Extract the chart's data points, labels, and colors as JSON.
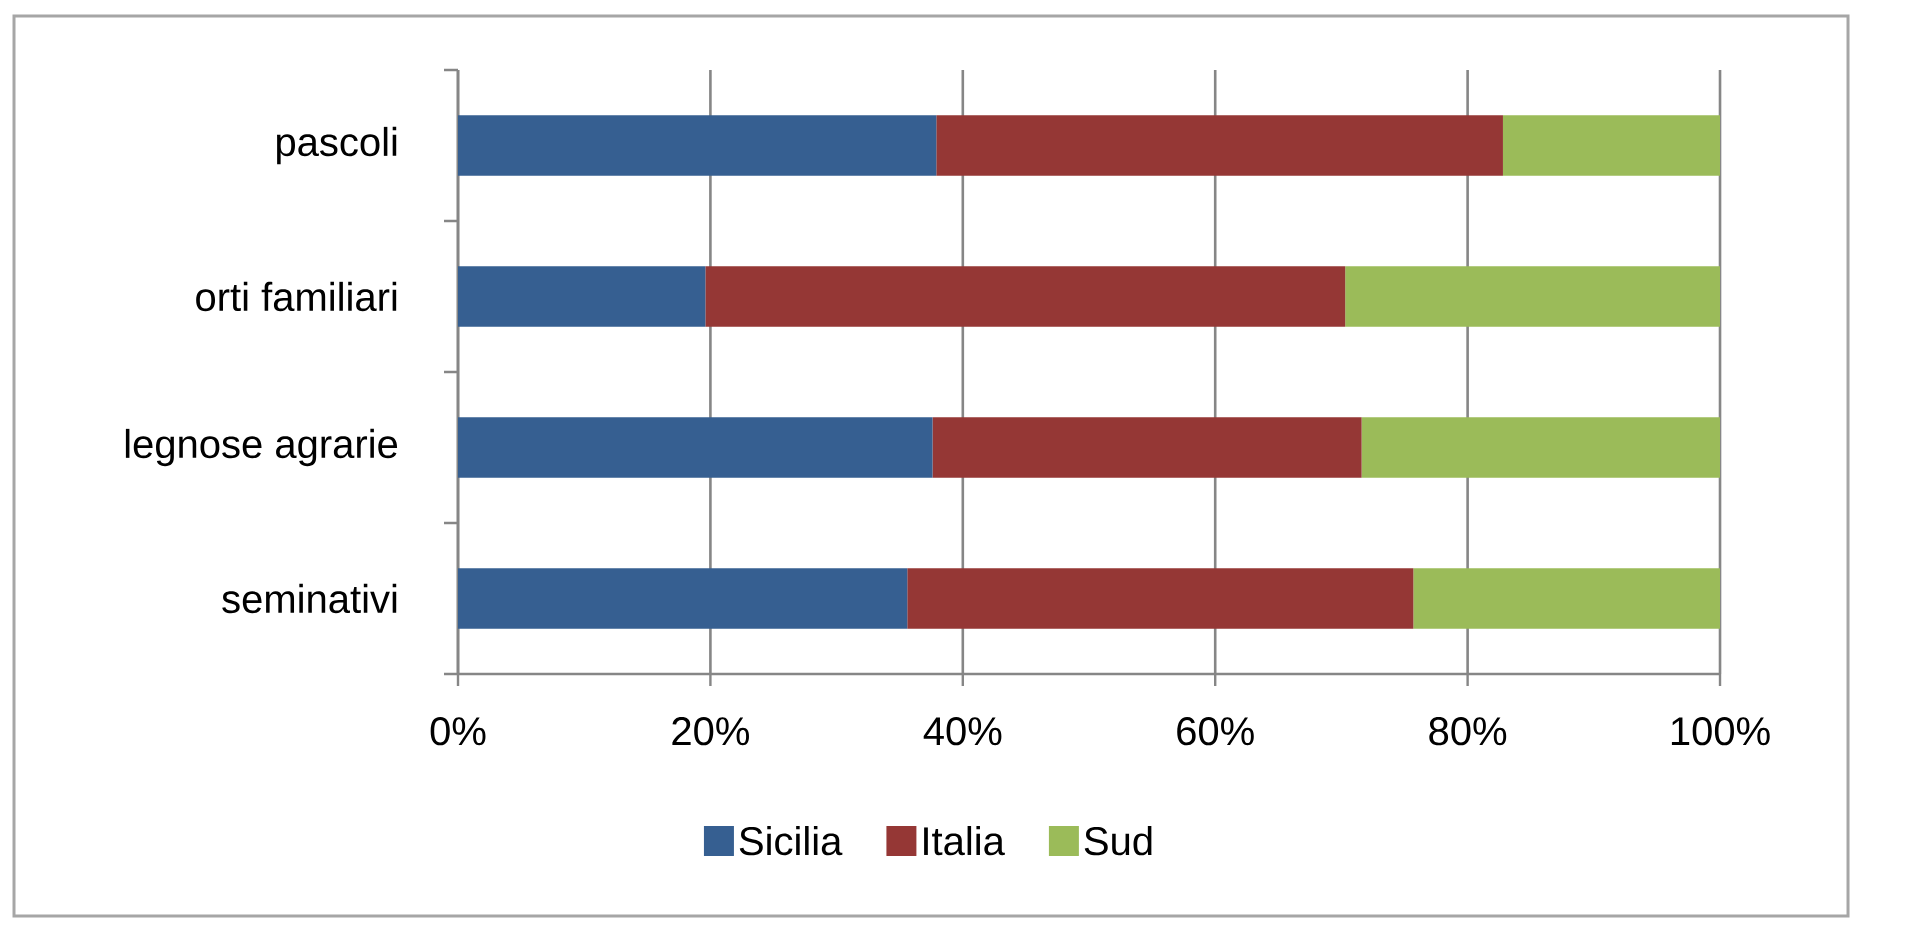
{
  "chart_data": {
    "type": "bar",
    "orientation": "horizontal",
    "stacked": true,
    "categories": [
      "pascoli",
      "orti familiari",
      "legnose agrarie",
      "seminativi"
    ],
    "series": [
      {
        "name": "Sicilia",
        "color": "#365f91",
        "values": [
          37.9,
          19.6,
          37.6,
          35.6
        ]
      },
      {
        "name": "Italia",
        "color": "#953735",
        "values": [
          44.9,
          50.7,
          34.0,
          40.1
        ]
      },
      {
        "name": "Sud",
        "color": "#9bbb59",
        "values": [
          17.2,
          29.7,
          28.4,
          24.3
        ]
      }
    ],
    "xlim": [
      0,
      100
    ],
    "xticks": [
      {
        "value": 0,
        "label": "0%"
      },
      {
        "value": 20,
        "label": "20%"
      },
      {
        "value": 40,
        "label": "40%"
      },
      {
        "value": 60,
        "label": "60%"
      },
      {
        "value": 80,
        "label": "80%"
      },
      {
        "value": 100,
        "label": "100%"
      }
    ],
    "grid": "x",
    "legend": "bottom"
  }
}
